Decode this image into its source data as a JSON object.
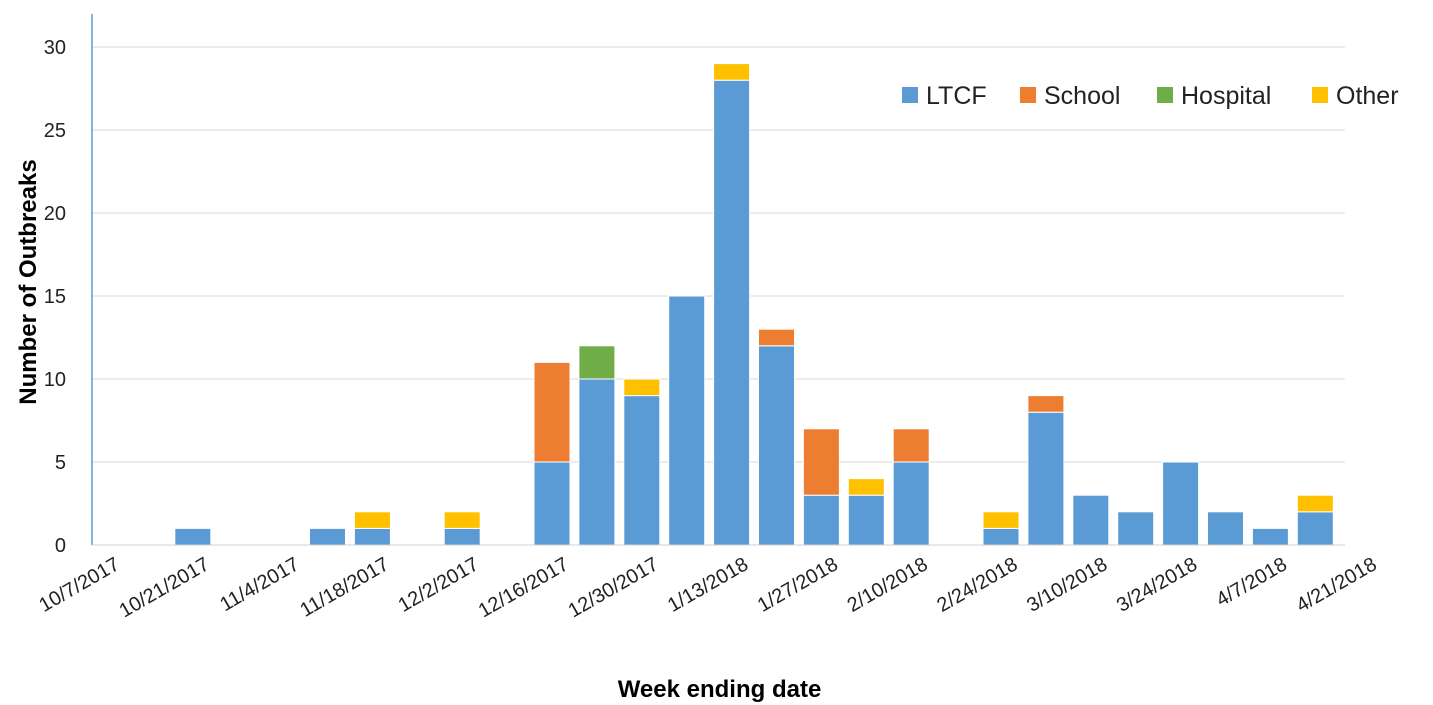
{
  "chart_data": {
    "type": "bar",
    "stacked": true,
    "title": "",
    "xlabel": "Week ending date",
    "ylabel": "Number of Outbreaks",
    "ylim": [
      0,
      30
    ],
    "yticks": [
      0,
      5,
      10,
      15,
      20,
      25,
      30
    ],
    "grid": true,
    "legend_position": "top-right",
    "x_tick_labels": [
      "10/7/2017",
      "10/21/2017",
      "11/4/2017",
      "11/18/2017",
      "12/2/2017",
      "12/16/2017",
      "12/30/2017",
      "1/13/2018",
      "1/27/2018",
      "2/10/2018",
      "2/24/2018",
      "3/10/2018",
      "3/24/2018",
      "4/7/2018",
      "4/21/2018"
    ],
    "categories": [
      "10/7/2017",
      "10/14/2017",
      "10/21/2017",
      "10/28/2017",
      "11/4/2017",
      "11/11/2017",
      "11/18/2017",
      "11/25/2017",
      "12/2/2017",
      "12/9/2017",
      "12/16/2017",
      "12/23/2017",
      "12/30/2017",
      "1/6/2018",
      "1/13/2018",
      "1/20/2018",
      "1/27/2018",
      "2/3/2018",
      "2/10/2018",
      "2/17/2018",
      "2/24/2018",
      "3/3/2018",
      "3/10/2018",
      "3/17/2018",
      "3/24/2018",
      "3/31/2018",
      "4/7/2018",
      "4/14/2018",
      "4/21/2018"
    ],
    "series": [
      {
        "name": "LTCF",
        "color": "#5b9bd5",
        "values": [
          0,
          0,
          1,
          0,
          0,
          1,
          1,
          0,
          1,
          0,
          5,
          10,
          9,
          15,
          28,
          12,
          3,
          3,
          5,
          0,
          1,
          8,
          3,
          2,
          5,
          2,
          1,
          2,
          0
        ]
      },
      {
        "name": "School",
        "color": "#ed7d31",
        "values": [
          0,
          0,
          0,
          0,
          0,
          0,
          0,
          0,
          0,
          0,
          6,
          0,
          0,
          0,
          0,
          1,
          4,
          0,
          2,
          0,
          0,
          1,
          0,
          0,
          0,
          0,
          0,
          0,
          0
        ]
      },
      {
        "name": "Hospital",
        "color": "#70ad47",
        "values": [
          0,
          0,
          0,
          0,
          0,
          0,
          0,
          0,
          0,
          0,
          0,
          2,
          0,
          0,
          0,
          0,
          0,
          0,
          0,
          0,
          0,
          0,
          0,
          0,
          0,
          0,
          0,
          0,
          0
        ]
      },
      {
        "name": "Other",
        "color": "#ffc000",
        "values": [
          0,
          0,
          0,
          0,
          0,
          0,
          1,
          0,
          1,
          0,
          0,
          0,
          1,
          0,
          1,
          0,
          0,
          1,
          0,
          0,
          1,
          0,
          0,
          0,
          0,
          0,
          0,
          1,
          0
        ]
      }
    ]
  }
}
